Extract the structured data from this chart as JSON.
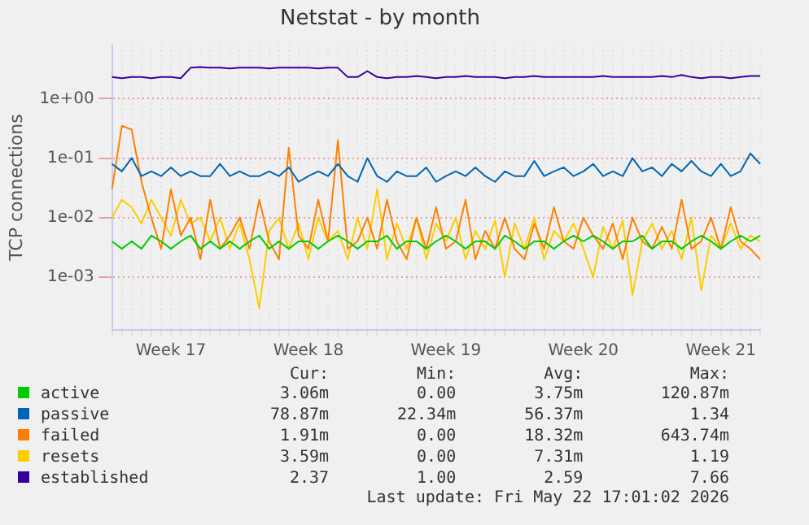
{
  "chart_data": {
    "type": "line",
    "title": "Netstat - by month",
    "ylabel": "TCP connections",
    "categories": [
      null,
      null,
      null,
      null,
      null,
      null,
      "Week 17",
      null,
      null,
      null,
      null,
      null,
      null,
      null,
      null,
      null,
      null,
      null,
      null,
      null,
      "Week 18",
      null,
      null,
      null,
      null,
      null,
      null,
      null,
      null,
      null,
      null,
      null,
      null,
      null,
      "Week 19",
      null,
      null,
      null,
      null,
      null,
      null,
      null,
      null,
      null,
      null,
      null,
      null,
      null,
      "Week 20",
      null,
      null,
      null,
      null,
      null,
      null,
      null,
      null,
      null,
      null,
      null,
      null,
      null,
      "Week 21",
      null,
      null,
      null,
      null
    ],
    "series": [
      {
        "name": "active",
        "color": "#00cc00",
        "values": [
          0.004,
          0.003,
          0.004,
          0.003,
          0.005,
          0.004,
          0.003,
          0.004,
          0.005,
          0.003,
          0.004,
          0.003,
          0.004,
          0.003,
          0.004,
          0.005,
          0.003,
          0.004,
          0.003,
          0.004,
          0.004,
          0.003,
          0.004,
          0.005,
          0.004,
          0.003,
          0.004,
          0.004,
          0.005,
          0.003,
          0.004,
          0.004,
          0.003,
          0.004,
          0.005,
          0.004,
          0.003,
          0.004,
          0.004,
          0.003,
          0.005,
          0.004,
          0.003,
          0.004,
          0.004,
          0.003,
          0.004,
          0.005,
          0.004,
          0.005,
          0.004,
          0.003,
          0.004,
          0.004,
          0.005,
          0.003,
          0.004,
          0.004,
          0.003,
          0.004,
          0.005,
          0.004,
          0.003,
          0.004,
          0.005,
          0.004,
          0.005
        ]
      },
      {
        "name": "passive",
        "color": "#0066b3",
        "values": [
          0.08,
          0.06,
          0.1,
          0.05,
          0.06,
          0.05,
          0.07,
          0.05,
          0.06,
          0.05,
          0.05,
          0.08,
          0.05,
          0.06,
          0.05,
          0.05,
          0.06,
          0.05,
          0.07,
          0.04,
          0.05,
          0.06,
          0.05,
          0.08,
          0.05,
          0.04,
          0.1,
          0.05,
          0.04,
          0.06,
          0.05,
          0.05,
          0.07,
          0.04,
          0.05,
          0.06,
          0.05,
          0.07,
          0.05,
          0.04,
          0.06,
          0.05,
          0.05,
          0.09,
          0.05,
          0.06,
          0.07,
          0.05,
          0.06,
          0.08,
          0.05,
          0.06,
          0.05,
          0.1,
          0.06,
          0.07,
          0.05,
          0.08,
          0.06,
          0.09,
          0.06,
          0.05,
          0.08,
          0.05,
          0.06,
          0.12,
          0.08
        ]
      },
      {
        "name": "failed",
        "color": "#ff8000",
        "values": [
          0.03,
          0.35,
          0.3,
          0.04,
          0.01,
          0.003,
          0.03,
          0.005,
          0.01,
          0.002,
          0.02,
          0.003,
          0.005,
          0.01,
          0.003,
          0.02,
          0.004,
          0.002,
          0.15,
          0.005,
          0.003,
          0.02,
          0.004,
          0.2,
          0.003,
          0.004,
          0.01,
          0.003,
          0.02,
          0.004,
          0.002,
          0.01,
          0.003,
          0.015,
          0.003,
          0.004,
          0.02,
          0.002,
          0.006,
          0.003,
          0.01,
          0.003,
          0.002,
          0.008,
          0.003,
          0.015,
          0.004,
          0.003,
          0.01,
          0.005,
          0.003,
          0.008,
          0.002,
          0.01,
          0.004,
          0.003,
          0.007,
          0.003,
          0.02,
          0.003,
          0.004,
          0.01,
          0.003,
          0.015,
          0.004,
          0.003,
          0.002
        ]
      },
      {
        "name": "resets",
        "color": "#ffcc00",
        "values": [
          0.01,
          0.02,
          0.015,
          0.008,
          0.02,
          0.01,
          0.005,
          0.02,
          0.008,
          0.01,
          0.004,
          0.01,
          0.003,
          0.008,
          0.002,
          0.0003,
          0.006,
          0.01,
          0.003,
          0.008,
          0.002,
          0.01,
          0.004,
          0.006,
          0.002,
          0.01,
          0.003,
          0.03,
          0.002,
          0.008,
          0.003,
          0.01,
          0.002,
          0.008,
          0.004,
          0.01,
          0.002,
          0.006,
          0.003,
          0.009,
          0.001,
          0.008,
          0.003,
          0.01,
          0.002,
          0.006,
          0.004,
          0.008,
          0.003,
          0.001,
          0.007,
          0.003,
          0.009,
          0.0005,
          0.004,
          0.008,
          0.003,
          0.006,
          0.002,
          0.01,
          0.0006,
          0.005,
          0.003,
          0.008,
          0.003,
          0.005,
          0.004
        ]
      },
      {
        "name": "established",
        "color": "#330099",
        "values": [
          2.3,
          2.2,
          2.3,
          2.3,
          2.2,
          2.3,
          2.3,
          2.2,
          3.3,
          3.4,
          3.3,
          3.3,
          3.2,
          3.3,
          3.3,
          3.3,
          3.2,
          3.3,
          3.3,
          3.3,
          3.3,
          3.2,
          3.3,
          3.3,
          2.3,
          2.3,
          2.9,
          2.3,
          2.2,
          2.3,
          2.3,
          2.4,
          2.3,
          2.2,
          2.3,
          2.3,
          2.4,
          2.3,
          2.3,
          2.3,
          2.2,
          2.3,
          2.3,
          2.4,
          2.3,
          2.3,
          2.3,
          2.3,
          2.3,
          2.3,
          2.4,
          2.3,
          2.3,
          2.3,
          2.3,
          2.3,
          2.4,
          2.3,
          2.5,
          2.3,
          2.2,
          2.3,
          2.3,
          2.2,
          2.3,
          2.4,
          2.4
        ]
      }
    ],
    "ylim": [
      0.00013,
      8
    ],
    "yticks": [
      {
        "value": 0.001,
        "label": "1e-03"
      },
      {
        "value": 0.01,
        "label": "1e-02"
      },
      {
        "value": 0.1,
        "label": "1e-01"
      },
      {
        "value": 1,
        "label": "1e+00"
      }
    ],
    "log": true,
    "grid": true,
    "legend": "bottom",
    "annotations": [
      "Cur:",
      "Min:",
      "Avg:",
      "Max:",
      "3.06m",
      "0.00",
      "3.75m",
      "120.87m",
      "78.87m",
      "22.34m",
      "56.37m",
      "1.34",
      "1.91m",
      "0.00",
      "18.32m",
      "643.74m",
      "3.59m",
      "0.00",
      "7.31m",
      "1.19",
      "2.37",
      "1.00",
      "2.59",
      "7.66",
      "Last update: Fri May 22 17:01:02 2026"
    ]
  }
}
